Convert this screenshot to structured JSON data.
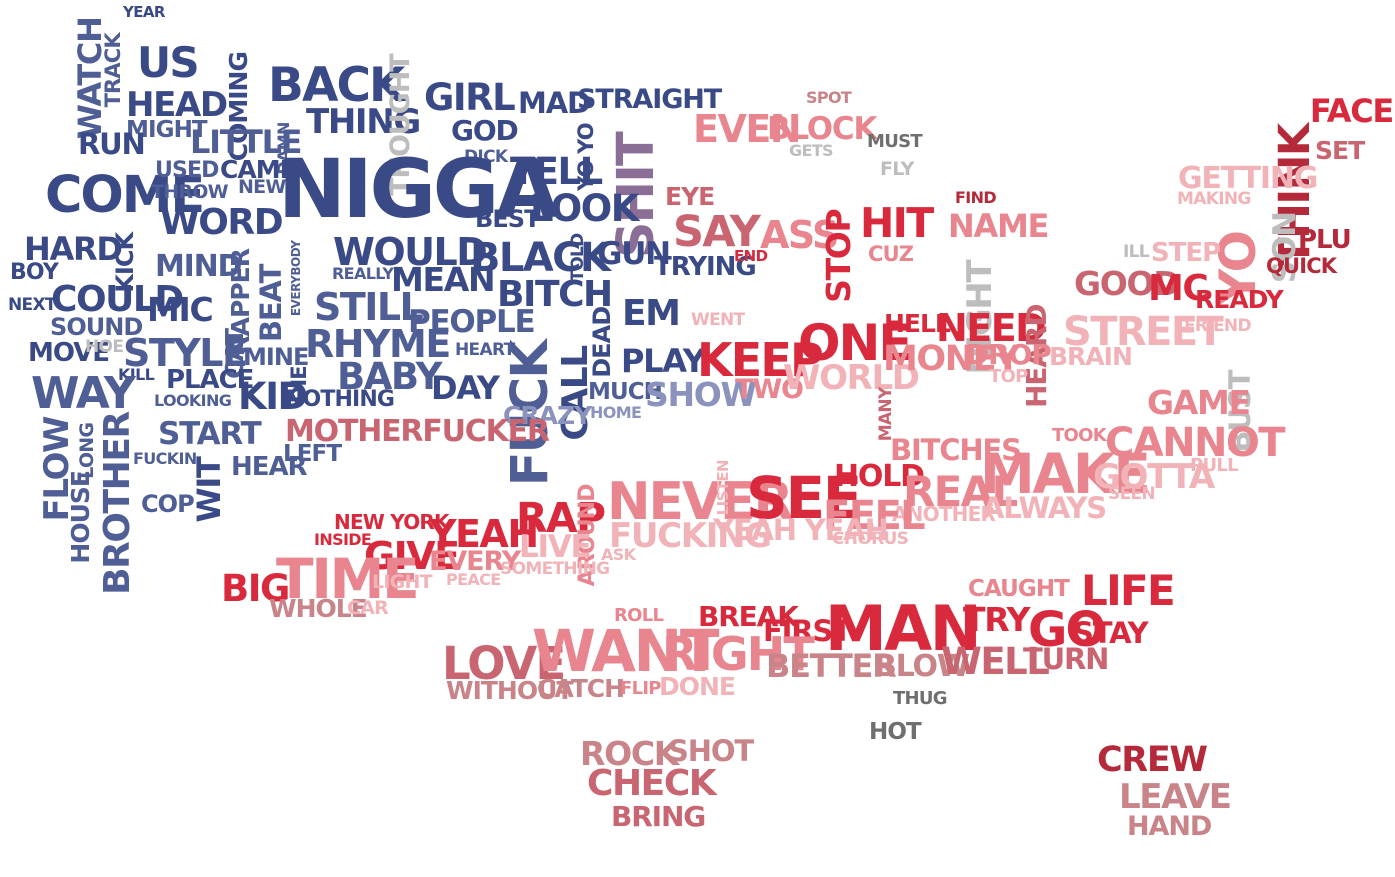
{
  "colors": {
    "navy": "#3a4a86",
    "blue": "#4f5f96",
    "periwinkle": "#8a92bd",
    "gray": "#bdbdbd",
    "darkgray": "#6f6f6f",
    "mauve": "#8a6e96",
    "rose": "#c96570",
    "pink": "#e9858e",
    "lightpink": "#f2b3b8",
    "red": "#d82a3c",
    "darkred": "#b42a3a",
    "dustyrose": "#c88488"
  },
  "words": [
    {
      "t": "YEAR",
      "c": "navy"
    },
    {
      "t": "WATCH",
      "c": "blue"
    },
    {
      "t": "TRACK",
      "c": "blue"
    },
    {
      "t": "US",
      "c": "navy"
    },
    {
      "t": "HEAD",
      "c": "navy"
    },
    {
      "t": "MIGHT",
      "c": "blue"
    },
    {
      "t": "RUN",
      "c": "navy"
    },
    {
      "t": "COMING",
      "c": "navy"
    },
    {
      "t": "LITTLE",
      "c": "blue"
    },
    {
      "t": "DAMN",
      "c": "blue"
    },
    {
      "t": "BACK",
      "c": "navy"
    },
    {
      "t": "THING",
      "c": "navy"
    },
    {
      "t": "THOUGHT",
      "c": "gray"
    },
    {
      "t": "GIRL",
      "c": "navy"
    },
    {
      "t": "GOD",
      "c": "navy"
    },
    {
      "t": "DICK",
      "c": "blue"
    },
    {
      "t": "MAD",
      "c": "navy"
    },
    {
      "t": "STRAIGHT",
      "c": "navy"
    },
    {
      "t": "YO YO",
      "c": "navy"
    },
    {
      "t": "TELL",
      "c": "navy"
    },
    {
      "t": "SHIT",
      "c": "mauve"
    },
    {
      "t": "COME",
      "c": "navy"
    },
    {
      "t": "USED",
      "c": "blue"
    },
    {
      "t": "CAME",
      "c": "navy"
    },
    {
      "t": "THROW",
      "c": "blue"
    },
    {
      "t": "NEW",
      "c": "blue"
    },
    {
      "t": "NIGGA",
      "c": "navy"
    },
    {
      "t": "BEST",
      "c": "navy"
    },
    {
      "t": "LOOK",
      "c": "navy"
    },
    {
      "t": "HARD",
      "c": "navy"
    },
    {
      "t": "KICK",
      "c": "navy"
    },
    {
      "t": "WORD",
      "c": "navy"
    },
    {
      "t": "BOY",
      "c": "navy"
    },
    {
      "t": "MIND",
      "c": "blue"
    },
    {
      "t": "RAPPER",
      "c": "blue"
    },
    {
      "t": "BEAT",
      "c": "blue"
    },
    {
      "t": "EVERYBODY",
      "c": "blue"
    },
    {
      "t": "WOULD",
      "c": "navy"
    },
    {
      "t": "REALLY",
      "c": "blue"
    },
    {
      "t": "MEAN",
      "c": "navy"
    },
    {
      "t": "BLACK",
      "c": "navy"
    },
    {
      "t": "TOLD",
      "c": "navy"
    },
    {
      "t": "GUN",
      "c": "navy"
    },
    {
      "t": "TRYING",
      "c": "navy"
    },
    {
      "t": "NEXT",
      "c": "navy"
    },
    {
      "t": "COULD",
      "c": "navy"
    },
    {
      "t": "MIC",
      "c": "navy"
    },
    {
      "t": "SOUND",
      "c": "blue"
    },
    {
      "t": "STILL",
      "c": "blue"
    },
    {
      "t": "BITCH",
      "c": "navy"
    },
    {
      "t": "PEOPLE",
      "c": "blue"
    },
    {
      "t": "DEAD",
      "c": "navy"
    },
    {
      "t": "EM",
      "c": "navy"
    },
    {
      "t": "MOVE",
      "c": "navy"
    },
    {
      "t": "HOE",
      "c": "gray"
    },
    {
      "t": "STYLE",
      "c": "blue"
    },
    {
      "t": "CAT",
      "c": "blue"
    },
    {
      "t": "MINE",
      "c": "blue"
    },
    {
      "t": "RHYME",
      "c": "blue"
    },
    {
      "t": "HEART",
      "c": "blue"
    },
    {
      "t": "FUCK",
      "c": "blue"
    },
    {
      "t": "CALL",
      "c": "navy"
    },
    {
      "t": "PLAY",
      "c": "navy"
    },
    {
      "t": "KILL",
      "c": "navy"
    },
    {
      "t": "PLACE",
      "c": "navy"
    },
    {
      "t": "DIE",
      "c": "navy"
    },
    {
      "t": "BABY",
      "c": "blue"
    },
    {
      "t": "WAY",
      "c": "blue"
    },
    {
      "t": "LOOKING",
      "c": "blue"
    },
    {
      "t": "KID",
      "c": "navy"
    },
    {
      "t": "NOTHING",
      "c": "navy"
    },
    {
      "t": "DAY",
      "c": "navy"
    },
    {
      "t": "MUCH",
      "c": "blue"
    },
    {
      "t": "HOME",
      "c": "periwinkle"
    },
    {
      "t": "SHOW",
      "c": "periwinkle"
    },
    {
      "t": "CRAZY",
      "c": "periwinkle"
    },
    {
      "t": "FLOW",
      "c": "blue"
    },
    {
      "t": "LONG",
      "c": "blue"
    },
    {
      "t": "BROTHER",
      "c": "blue"
    },
    {
      "t": "START",
      "c": "blue"
    },
    {
      "t": "MOTHERFUCKER",
      "c": "rose"
    },
    {
      "t": "HOUSE",
      "c": "blue"
    },
    {
      "t": "FUCKIN",
      "c": "blue"
    },
    {
      "t": "WIT",
      "c": "navy"
    },
    {
      "t": "HEAR",
      "c": "blue"
    },
    {
      "t": "LEFT",
      "c": "blue"
    },
    {
      "t": "COP",
      "c": "blue"
    },
    {
      "t": "SPOT",
      "c": "dustyrose"
    },
    {
      "t": "EVEN",
      "c": "pink"
    },
    {
      "t": "BLOCK",
      "c": "pink"
    },
    {
      "t": "GETS",
      "c": "gray"
    },
    {
      "t": "MUST",
      "c": "darkgray"
    },
    {
      "t": "FLY",
      "c": "gray"
    },
    {
      "t": "EYE",
      "c": "rose"
    },
    {
      "t": "SAY",
      "c": "rose"
    },
    {
      "t": "END",
      "c": "red"
    },
    {
      "t": "ASS",
      "c": "pink"
    },
    {
      "t": "STOP",
      "c": "red"
    },
    {
      "t": "HIT",
      "c": "red"
    },
    {
      "t": "CUZ",
      "c": "pink"
    },
    {
      "t": "FIND",
      "c": "darkred"
    },
    {
      "t": "NAME",
      "c": "pink"
    },
    {
      "t": "FACE",
      "c": "red"
    },
    {
      "t": "THINK",
      "c": "darkred"
    },
    {
      "t": "SET",
      "c": "rose"
    },
    {
      "t": "GETTING",
      "c": "lightpink"
    },
    {
      "t": "MAKING",
      "c": "lightpink"
    },
    {
      "t": "YO",
      "c": "pink"
    },
    {
      "t": "SON",
      "c": "gray"
    },
    {
      "t": "PLU",
      "c": "darkred"
    },
    {
      "t": "ILL",
      "c": "gray"
    },
    {
      "t": "STEP",
      "c": "lightpink"
    },
    {
      "t": "QUICK",
      "c": "darkred"
    },
    {
      "t": "NIGHT",
      "c": "gray"
    },
    {
      "t": "GOOD",
      "c": "rose"
    },
    {
      "t": "MC",
      "c": "red"
    },
    {
      "t": "READY",
      "c": "red"
    },
    {
      "t": "WENT",
      "c": "lightpink"
    },
    {
      "t": "ONE",
      "c": "red"
    },
    {
      "t": "HELL",
      "c": "red"
    },
    {
      "t": "NEED",
      "c": "red"
    },
    {
      "t": "HEARD",
      "c": "rose"
    },
    {
      "t": "STREET",
      "c": "lightpink"
    },
    {
      "t": "FRIEND",
      "c": "lightpink"
    },
    {
      "t": "KEEP",
      "c": "red"
    },
    {
      "t": "TWO",
      "c": "pink"
    },
    {
      "t": "WORLD",
      "c": "lightpink"
    },
    {
      "t": "MANY",
      "c": "rose"
    },
    {
      "t": "MONEY",
      "c": "pink"
    },
    {
      "t": "DROP",
      "c": "pink"
    },
    {
      "t": "TOP",
      "c": "lightpink"
    },
    {
      "t": "BRAIN",
      "c": "lightpink"
    },
    {
      "t": "BUST",
      "c": "gray"
    },
    {
      "t": "GAME",
      "c": "pink"
    },
    {
      "t": "TOOK",
      "c": "pink"
    },
    {
      "t": "BITCHES",
      "c": "pink"
    },
    {
      "t": "CANNOT",
      "c": "pink"
    },
    {
      "t": "HOLD",
      "c": "red"
    },
    {
      "t": "MAKE",
      "c": "pink"
    },
    {
      "t": "GOTTA",
      "c": "lightpink"
    },
    {
      "t": "PULL",
      "c": "lightpink"
    },
    {
      "t": "REAL",
      "c": "pink"
    },
    {
      "t": "SEEN",
      "c": "lightpink"
    },
    {
      "t": "ALWAYS",
      "c": "lightpink"
    },
    {
      "t": "ANOTHER",
      "c": "lightpink"
    },
    {
      "t": "NEW YORK",
      "c": "red"
    },
    {
      "t": "RAP",
      "c": "red"
    },
    {
      "t": "NEVER",
      "c": "pink"
    },
    {
      "t": "LISTEN",
      "c": "lightpink"
    },
    {
      "t": "SEE",
      "c": "red"
    },
    {
      "t": "FEEL",
      "c": "pink"
    },
    {
      "t": "INSIDE",
      "c": "red"
    },
    {
      "t": "YEAH",
      "c": "red"
    },
    {
      "t": "AROUND",
      "c": "pink"
    },
    {
      "t": "FUCKING",
      "c": "lightpink"
    },
    {
      "t": "YEAH YEAH",
      "c": "lightpink"
    },
    {
      "t": "CHORUS",
      "c": "lightpink"
    },
    {
      "t": "GIVE",
      "c": "red"
    },
    {
      "t": "EVERY",
      "c": "pink"
    },
    {
      "t": "LIVE",
      "c": "lightpink"
    },
    {
      "t": "ASK",
      "c": "lightpink"
    },
    {
      "t": "BIG",
      "c": "red"
    },
    {
      "t": "TIME",
      "c": "pink"
    },
    {
      "t": "LIGHT",
      "c": "lightpink"
    },
    {
      "t": "PEACE",
      "c": "lightpink"
    },
    {
      "t": "SOMETHING",
      "c": "lightpink"
    },
    {
      "t": "WHOLE",
      "c": "dustyrose"
    },
    {
      "t": "CAR",
      "c": "lightpink"
    },
    {
      "t": "CAUGHT",
      "c": "pink"
    },
    {
      "t": "LIFE",
      "c": "red"
    },
    {
      "t": "ROLL",
      "c": "pink"
    },
    {
      "t": "BREAK",
      "c": "red"
    },
    {
      "t": "FIRST",
      "c": "red"
    },
    {
      "t": "MAN",
      "c": "red"
    },
    {
      "t": "TRY",
      "c": "red"
    },
    {
      "t": "GO",
      "c": "red"
    },
    {
      "t": "STAY",
      "c": "red"
    },
    {
      "t": "LOVE",
      "c": "rose"
    },
    {
      "t": "WANT",
      "c": "pink"
    },
    {
      "t": "RIGHT",
      "c": "pink"
    },
    {
      "t": "BETTER",
      "c": "dustyrose"
    },
    {
      "t": "BLOW",
      "c": "dustyrose"
    },
    {
      "t": "WELL",
      "c": "rose"
    },
    {
      "t": "TURN",
      "c": "rose"
    },
    {
      "t": "WITHOUT",
      "c": "dustyrose"
    },
    {
      "t": "CATCH",
      "c": "dustyrose"
    },
    {
      "t": "FLIP",
      "c": "pink"
    },
    {
      "t": "DONE",
      "c": "lightpink"
    },
    {
      "t": "THUG",
      "c": "darkgray"
    },
    {
      "t": "HOT",
      "c": "darkgray"
    },
    {
      "t": "ROCK",
      "c": "dustyrose"
    },
    {
      "t": "SHOT",
      "c": "dustyrose"
    },
    {
      "t": "CHECK",
      "c": "rose"
    },
    {
      "t": "BRING",
      "c": "rose"
    },
    {
      "t": "CREW",
      "c": "darkred"
    },
    {
      "t": "LEAVE",
      "c": "dustyrose"
    },
    {
      "t": "HAND",
      "c": "dustyrose"
    }
  ]
}
